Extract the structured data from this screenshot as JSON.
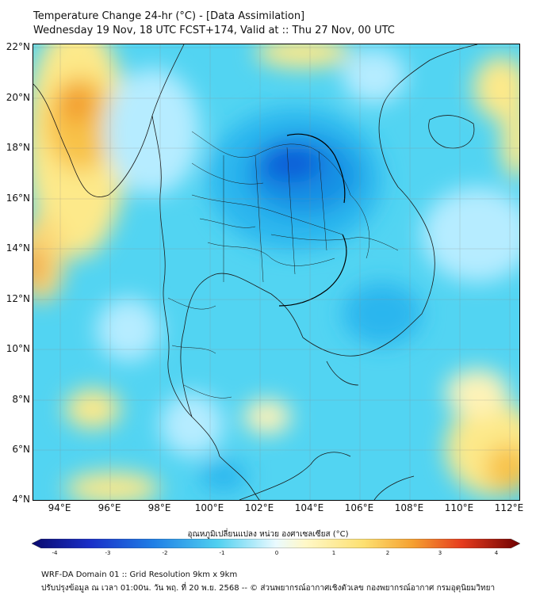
{
  "title": {
    "line1": "Temperature Change 24-hr (°C) - [Data Assimilation]",
    "line2": "Wednesday 19 Nov, 18 UTC FCST+174, Valid at :: Thu 27 Nov, 00 UTC"
  },
  "axes": {
    "lat_labels": [
      "22°N",
      "20°N",
      "18°N",
      "16°N",
      "14°N",
      "12°N",
      "10°N",
      "8°N",
      "6°N",
      "4°N"
    ],
    "lon_labels": [
      "94°E",
      "96°E",
      "98°E",
      "100°E",
      "102°E",
      "104°E",
      "106°E",
      "108°E",
      "110°E",
      "112°E"
    ]
  },
  "colorbar": {
    "title": "อุณหภูมิเปลี่ยนแปลง หน่วย องศาเซลเซียส (°C)",
    "ticks": [
      "-4",
      "-3",
      "-2",
      "-1",
      "0",
      "1",
      "2",
      "3",
      "4"
    ]
  },
  "colors": {
    "dark_blue": "#0a1e9e",
    "cyan": "#5ad2f2",
    "light": "#c8f0ff",
    "yellow": "#fde98a",
    "orange": "#f5a83a",
    "dark_red": "#8b0000"
  },
  "footer": {
    "line1": "WRF-DA Domain 01 :: Grid Resolution 9km x 9km",
    "line2": "ปรับปรุงข้อมูล ณ เวลา 01:00น. วัน พฤ. ที่ 20 พ.ย. 2568 -- © ส่วนพยากรณ์อากาศเชิงตัวเลข กองพยากรณ์อากาศ กรมอุตุนิยมวิทยา"
  }
}
